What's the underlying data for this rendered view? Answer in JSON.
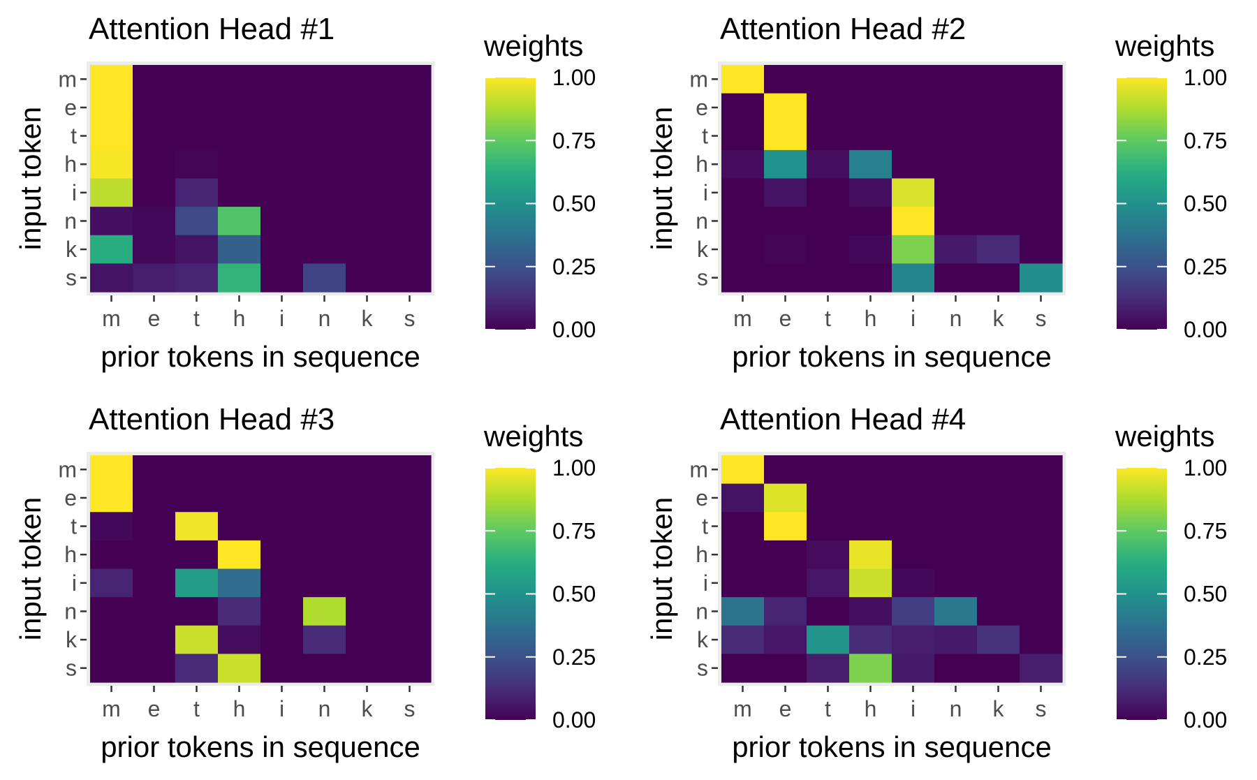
{
  "chart_data": [
    {
      "type": "heatmap",
      "title": "Attention Head #1",
      "xlabel": "prior tokens in sequence",
      "ylabel": "input token",
      "x": [
        "m",
        "e",
        "t",
        "h",
        "i",
        "n",
        "k",
        "s"
      ],
      "y": [
        "m",
        "e",
        "t",
        "h",
        "i",
        "n",
        "k",
        "s"
      ],
      "values": [
        [
          1.0,
          0.0,
          0.0,
          0.0,
          0.0,
          0.0,
          0.0,
          0.0
        ],
        [
          1.0,
          0.0,
          0.0,
          0.0,
          0.0,
          0.0,
          0.0,
          0.0
        ],
        [
          1.0,
          0.0,
          0.0,
          0.0,
          0.0,
          0.0,
          0.0,
          0.0
        ],
        [
          0.99,
          0.0,
          0.01,
          0.0,
          0.0,
          0.0,
          0.0,
          0.0
        ],
        [
          0.9,
          0.0,
          0.1,
          0.0,
          0.0,
          0.0,
          0.0,
          0.0
        ],
        [
          0.04,
          0.02,
          0.22,
          0.72,
          0.0,
          0.0,
          0.0,
          0.0
        ],
        [
          0.62,
          0.02,
          0.05,
          0.31,
          0.0,
          0.0,
          0.0,
          0.0
        ],
        [
          0.05,
          0.08,
          0.1,
          0.65,
          0.0,
          0.2,
          0.0,
          0.0
        ]
      ],
      "legend": {
        "title": "weights",
        "ticks": [
          "0.00",
          "0.25",
          "0.50",
          "0.75",
          "1.00"
        ],
        "range": [
          0,
          1
        ],
        "placement": "right"
      }
    },
    {
      "type": "heatmap",
      "title": "Attention Head #2",
      "xlabel": "prior tokens in sequence",
      "ylabel": "input token",
      "x": [
        "m",
        "e",
        "t",
        "h",
        "i",
        "n",
        "k",
        "s"
      ],
      "y": [
        "m",
        "e",
        "t",
        "h",
        "i",
        "n",
        "k",
        "s"
      ],
      "values": [
        [
          1.0,
          0.0,
          0.0,
          0.0,
          0.0,
          0.0,
          0.0,
          0.0
        ],
        [
          0.0,
          1.0,
          0.0,
          0.0,
          0.0,
          0.0,
          0.0,
          0.0
        ],
        [
          0.0,
          1.0,
          0.0,
          0.0,
          0.0,
          0.0,
          0.0,
          0.0
        ],
        [
          0.03,
          0.5,
          0.04,
          0.43,
          0.0,
          0.0,
          0.0,
          0.0
        ],
        [
          0.0,
          0.05,
          0.0,
          0.04,
          0.94,
          0.0,
          0.0,
          0.0
        ],
        [
          0.0,
          0.0,
          0.0,
          0.0,
          1.0,
          0.0,
          0.0,
          0.0
        ],
        [
          0.0,
          0.01,
          0.0,
          0.02,
          0.8,
          0.07,
          0.12,
          0.0
        ],
        [
          0.0,
          0.0,
          0.0,
          0.0,
          0.45,
          0.0,
          0.0,
          0.48
        ]
      ],
      "legend": {
        "title": "weights",
        "ticks": [
          "0.00",
          "0.25",
          "0.50",
          "0.75",
          "1.00"
        ],
        "range": [
          0,
          1
        ],
        "placement": "right"
      }
    },
    {
      "type": "heatmap",
      "title": "Attention Head #3",
      "xlabel": "prior tokens in sequence",
      "ylabel": "input token",
      "x": [
        "m",
        "e",
        "t",
        "h",
        "i",
        "n",
        "k",
        "s"
      ],
      "y": [
        "m",
        "e",
        "t",
        "h",
        "i",
        "n",
        "k",
        "s"
      ],
      "values": [
        [
          1.0,
          0.0,
          0.0,
          0.0,
          0.0,
          0.0,
          0.0,
          0.0
        ],
        [
          1.0,
          0.0,
          0.0,
          0.0,
          0.0,
          0.0,
          0.0,
          0.0
        ],
        [
          0.02,
          0.0,
          0.98,
          0.0,
          0.0,
          0.0,
          0.0,
          0.0
        ],
        [
          0.0,
          0.0,
          0.0,
          1.0,
          0.0,
          0.0,
          0.0,
          0.0
        ],
        [
          0.1,
          0.0,
          0.55,
          0.35,
          0.0,
          0.0,
          0.0,
          0.0
        ],
        [
          0.0,
          0.0,
          0.0,
          0.12,
          0.0,
          0.88,
          0.0,
          0.0
        ],
        [
          0.0,
          0.0,
          0.92,
          0.03,
          0.0,
          0.12,
          0.0,
          0.0
        ],
        [
          0.0,
          0.0,
          0.12,
          0.92,
          0.0,
          0.0,
          0.0,
          0.0
        ]
      ],
      "legend": {
        "title": "weights",
        "ticks": [
          "0.00",
          "0.25",
          "0.50",
          "0.75",
          "1.00"
        ],
        "range": [
          0,
          1
        ],
        "placement": "right"
      }
    },
    {
      "type": "heatmap",
      "title": "Attention Head #4",
      "xlabel": "prior tokens in sequence",
      "ylabel": "input token",
      "x": [
        "m",
        "e",
        "t",
        "h",
        "i",
        "n",
        "k",
        "s"
      ],
      "y": [
        "m",
        "e",
        "t",
        "h",
        "i",
        "n",
        "k",
        "s"
      ],
      "values": [
        [
          1.0,
          0.0,
          0.0,
          0.0,
          0.0,
          0.0,
          0.0,
          0.0
        ],
        [
          0.05,
          0.95,
          0.0,
          0.0,
          0.0,
          0.0,
          0.0,
          0.0
        ],
        [
          0.0,
          1.0,
          0.0,
          0.0,
          0.0,
          0.0,
          0.0,
          0.0
        ],
        [
          0.0,
          0.0,
          0.03,
          0.97,
          0.0,
          0.0,
          0.0,
          0.0
        ],
        [
          0.0,
          0.0,
          0.06,
          0.92,
          0.02,
          0.0,
          0.0,
          0.0
        ],
        [
          0.38,
          0.1,
          0.0,
          0.04,
          0.18,
          0.4,
          0.0,
          0.0
        ],
        [
          0.12,
          0.06,
          0.52,
          0.12,
          0.08,
          0.07,
          0.14,
          0.0
        ],
        [
          0.0,
          0.0,
          0.08,
          0.8,
          0.07,
          0.0,
          0.0,
          0.08
        ]
      ],
      "legend": {
        "title": "weights",
        "ticks": [
          "0.00",
          "0.25",
          "0.50",
          "0.75",
          "1.00"
        ],
        "range": [
          0,
          1
        ],
        "placement": "right"
      }
    }
  ]
}
